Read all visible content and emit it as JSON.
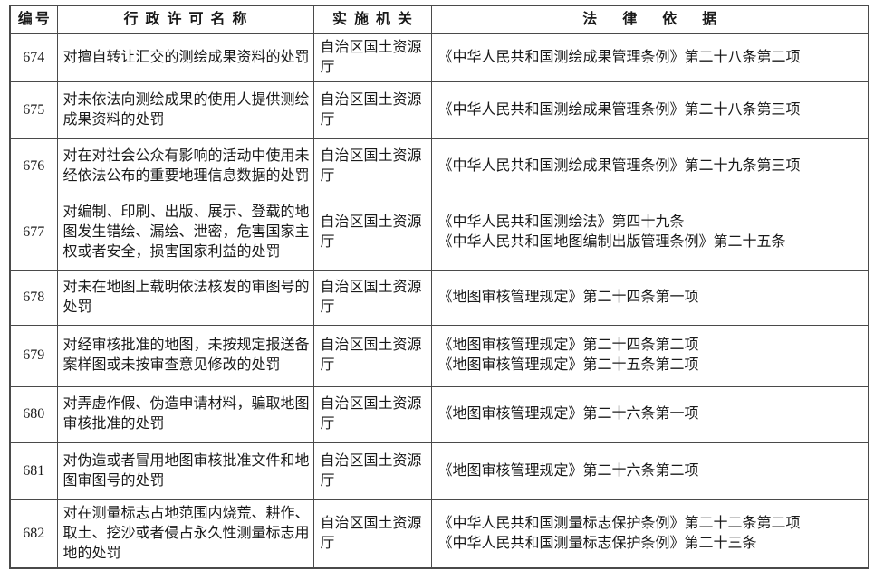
{
  "colors": {
    "border": "#4a4a4a",
    "text": "#1a1a1a",
    "background": "#ffffff"
  },
  "table": {
    "headers": {
      "id": "编号",
      "name": "行政许可名称",
      "agency": "实施机关",
      "legal": "法律依据"
    },
    "rows": [
      {
        "id": "674",
        "name": "对擅自转让汇交的测绘成果资料的处罚",
        "agency": "自治区国土资源厅",
        "legal": [
          "《中华人民共和国测绘成果管理条例》第二十八条第二项"
        ]
      },
      {
        "id": "675",
        "name": "对未依法向测绘成果的使用人提供测绘成果资料的处罚",
        "agency": "自治区国土资源厅",
        "legal": [
          "《中华人民共和国测绘成果管理条例》第二十八条第三项"
        ]
      },
      {
        "id": "676",
        "name": "对在对社会公众有影响的活动中使用未经依法公布的重要地理信息数据的处罚",
        "agency": "自治区国土资源厅",
        "legal": [
          "《中华人民共和国测绘成果管理条例》第二十九条第三项"
        ]
      },
      {
        "id": "677",
        "name": "对编制、印刷、出版、展示、登载的地图发生错绘、漏绘、泄密，危害国家主权或者安全，损害国家利益的处罚",
        "agency": "自治区国土资源厅",
        "legal": [
          "《中华人民共和国测绘法》第四十九条",
          "《中华人民共和国地图编制出版管理条例》第二十五条"
        ]
      },
      {
        "id": "678",
        "name": "对未在地图上载明依法核发的审图号的处罚",
        "agency": "自治区国土资源厅",
        "legal": [
          "《地图审核管理规定》第二十四条第一项"
        ]
      },
      {
        "id": "679",
        "name": "对经审核批准的地图，未按规定报送备案样图或未按审查意见修改的处罚",
        "agency": "自治区国土资源厅",
        "legal": [
          "《地图审核管理规定》第二十四条第二项",
          "《地图审核管理规定》第二十五条第二项"
        ]
      },
      {
        "id": "680",
        "name": "对弄虚作假、伪造申请材料，骗取地图审核批准的处罚",
        "agency": "自治区国土资源厅",
        "legal": [
          "《地图审核管理规定》第二十六条第一项"
        ]
      },
      {
        "id": "681",
        "name": "对伪造或者冒用地图审核批准文件和地图审图号的处罚",
        "agency": "自治区国土资源厅",
        "legal": [
          "《地图审核管理规定》第二十六条第二项"
        ]
      },
      {
        "id": "682",
        "name": "对在测量标志占地范围内烧荒、耕作、取土、挖沙或者侵占永久性测量标志用地的处罚",
        "agency": "自治区国土资源厅",
        "legal": [
          "《中华人民共和国测量标志保护条例》第二十二条第二项",
          "《中华人民共和国测量标志保护条例》第二十三条"
        ]
      }
    ]
  }
}
